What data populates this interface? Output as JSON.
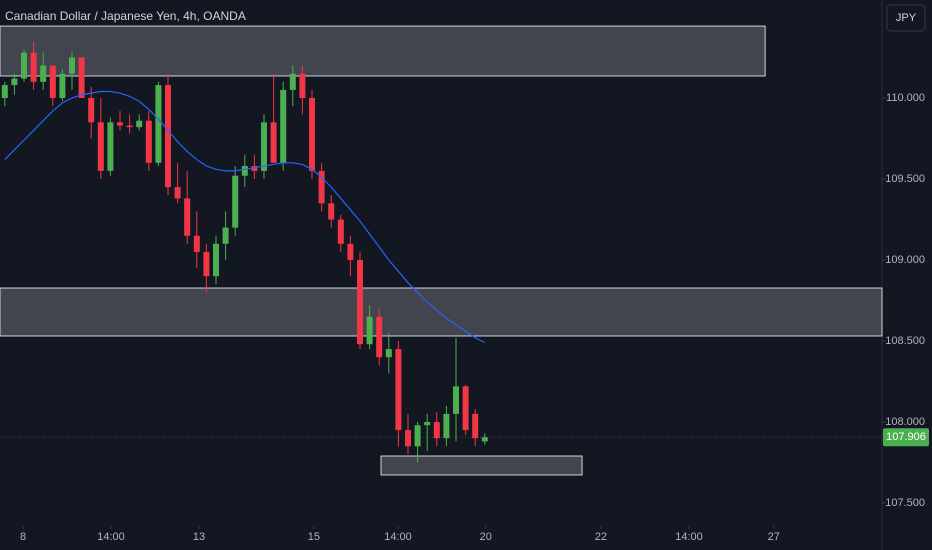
{
  "chart_data": {
    "type": "candlestick",
    "title": "Canadian Dollar / Japanese Yen, 4h, OANDA",
    "currency": "JPY",
    "up_color": "#4caf50",
    "down_color": "#f23645",
    "x": [
      0,
      1,
      2,
      3,
      4,
      5,
      6,
      7,
      8,
      9,
      10,
      11,
      12,
      13,
      14,
      15,
      16,
      17,
      18,
      19,
      20,
      21,
      22,
      23,
      24,
      25,
      26,
      27,
      28,
      29,
      30,
      31,
      32,
      33,
      34,
      35,
      36,
      37,
      38,
      39,
      40,
      41,
      42,
      43,
      44,
      45,
      46,
      47,
      48,
      49,
      50
    ],
    "candles": [
      [
        110.0,
        110.1,
        109.95,
        110.08
      ],
      [
        110.08,
        110.15,
        110.02,
        110.12
      ],
      [
        110.12,
        110.3,
        110.1,
        110.28
      ],
      [
        110.28,
        110.35,
        110.05,
        110.1
      ],
      [
        110.1,
        110.28,
        110.05,
        110.2
      ],
      [
        110.2,
        110.2,
        109.95,
        110.0
      ],
      [
        110.0,
        110.18,
        109.98,
        110.15
      ],
      [
        110.15,
        110.28,
        110.05,
        110.25
      ],
      [
        110.25,
        110.25,
        110.0,
        110.0
      ],
      [
        110.0,
        110.07,
        109.75,
        109.85
      ],
      [
        109.85,
        110.0,
        109.5,
        109.55
      ],
      [
        109.55,
        109.88,
        109.52,
        109.85
      ],
      [
        109.85,
        109.92,
        109.8,
        109.83
      ],
      [
        109.83,
        109.9,
        109.78,
        109.82
      ],
      [
        109.82,
        109.9,
        109.8,
        109.86
      ],
      [
        109.86,
        109.92,
        109.55,
        109.6
      ],
      [
        109.6,
        110.1,
        109.58,
        110.08
      ],
      [
        110.08,
        110.15,
        109.4,
        109.45
      ],
      [
        109.45,
        109.6,
        109.35,
        109.38
      ],
      [
        109.38,
        109.55,
        109.1,
        109.15
      ],
      [
        109.15,
        109.3,
        108.95,
        109.05
      ],
      [
        109.05,
        109.1,
        108.8,
        108.9
      ],
      [
        108.9,
        109.15,
        108.85,
        109.1
      ],
      [
        109.1,
        109.3,
        109.0,
        109.2
      ],
      [
        109.2,
        109.58,
        109.15,
        109.52
      ],
      [
        109.52,
        109.65,
        109.45,
        109.58
      ],
      [
        109.58,
        109.65,
        109.5,
        109.55
      ],
      [
        109.55,
        109.9,
        109.5,
        109.85
      ],
      [
        109.85,
        110.15,
        109.6,
        109.6
      ],
      [
        109.6,
        110.1,
        109.55,
        110.05
      ],
      [
        110.05,
        110.2,
        109.95,
        110.15
      ],
      [
        110.15,
        110.2,
        109.9,
        110.0
      ],
      [
        110.0,
        110.05,
        109.5,
        109.55
      ],
      [
        109.55,
        109.6,
        109.3,
        109.35
      ],
      [
        109.35,
        109.4,
        109.2,
        109.25
      ],
      [
        109.25,
        109.28,
        109.05,
        109.1
      ],
      [
        109.1,
        109.15,
        108.9,
        109.0
      ],
      [
        109.0,
        109.05,
        108.45,
        108.48
      ],
      [
        108.48,
        108.72,
        108.45,
        108.65
      ],
      [
        108.65,
        108.7,
        108.35,
        108.4
      ],
      [
        108.4,
        108.55,
        108.3,
        108.45
      ],
      [
        108.45,
        108.5,
        107.85,
        107.95
      ],
      [
        107.95,
        108.05,
        107.8,
        107.85
      ],
      [
        107.85,
        108.0,
        107.75,
        107.98
      ],
      [
        107.98,
        108.05,
        107.82,
        108.0
      ],
      [
        108.0,
        108.06,
        107.85,
        107.9
      ],
      [
        107.9,
        108.1,
        107.85,
        108.05
      ],
      [
        108.05,
        108.52,
        107.88,
        108.22
      ],
      [
        108.22,
        108.23,
        107.92,
        107.95
      ],
      [
        108.05,
        108.08,
        107.85,
        107.9
      ],
      [
        107.88,
        107.93,
        107.86,
        107.906
      ]
    ],
    "ma": {
      "color": "#2962ff",
      "values": [
        109.62,
        109.68,
        109.74,
        109.8,
        109.86,
        109.92,
        109.97,
        110.0,
        110.02,
        110.03,
        110.04,
        110.04,
        110.03,
        110.01,
        109.98,
        109.93,
        109.87,
        109.8,
        109.73,
        109.67,
        109.62,
        109.58,
        109.56,
        109.55,
        109.55,
        109.56,
        109.57,
        109.58,
        109.59,
        109.6,
        109.6,
        109.59,
        109.56,
        109.51,
        109.45,
        109.38,
        109.31,
        109.24,
        109.16,
        109.08,
        109.0,
        108.93,
        108.86,
        108.8,
        108.74,
        108.69,
        108.64,
        108.6,
        108.56,
        108.52,
        108.49
      ]
    },
    "zones": [
      {
        "y": [
          110.136,
          110.444
        ],
        "x": [
          -0.5,
          79.2
        ]
      },
      {
        "y": [
          108.531,
          108.827
        ],
        "x": [
          -0.5,
          91.375
        ]
      },
      {
        "y": [
          107.673,
          107.79
        ],
        "x": [
          39.19,
          60.13
        ]
      }
    ],
    "last_price": 107.906,
    "xlim": [
      -0.5,
      91.375
    ],
    "ylim": [
      107.395,
      110.605
    ],
    "xticks": [
      {
        "value": 1.9,
        "label": "8"
      },
      {
        "value": 11.06,
        "label": "14:00"
      },
      {
        "value": 20.23,
        "label": "13"
      },
      {
        "value": 32.2,
        "label": "15"
      },
      {
        "value": 40.96,
        "label": "14:00"
      },
      {
        "value": 50.1,
        "label": "20"
      },
      {
        "value": 62.1,
        "label": "22"
      },
      {
        "value": 71.27,
        "label": "14:00"
      },
      {
        "value": 80.1,
        "label": "27"
      }
    ],
    "yticks": [
      {
        "value": 110,
        "label": "110.000"
      },
      {
        "value": 109.5,
        "label": "109.500"
      },
      {
        "value": 109,
        "label": "109.000"
      },
      {
        "value": 108.5,
        "label": "108.500"
      },
      {
        "value": 108,
        "label": "108.000"
      },
      {
        "value": 107.5,
        "label": "107.500"
      }
    ]
  }
}
